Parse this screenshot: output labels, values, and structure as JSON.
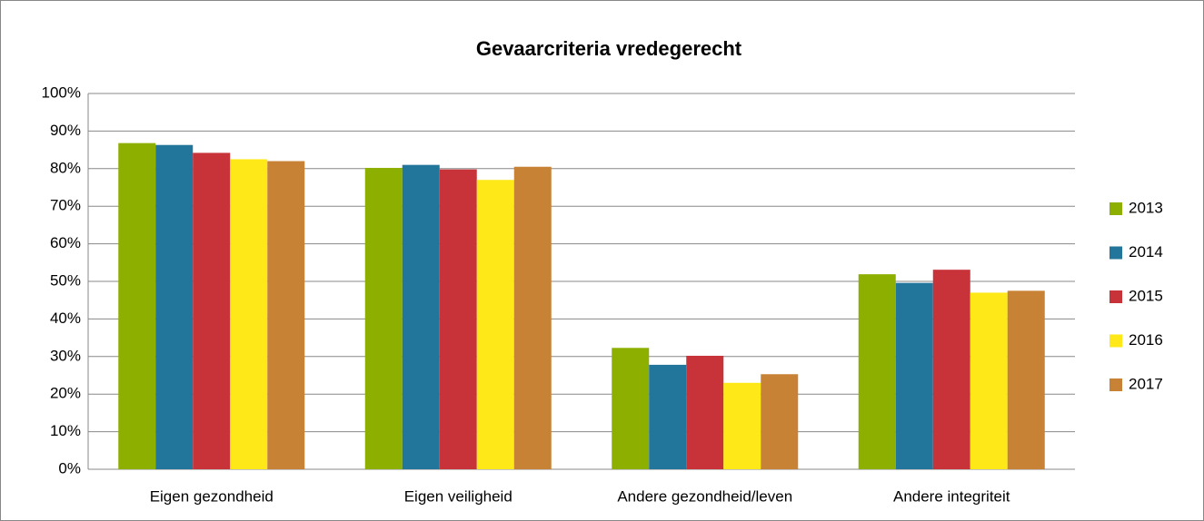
{
  "chart_data": {
    "type": "bar",
    "title": "Gevaarcriteria vredegerecht",
    "categories": [
      "Eigen gezondheid",
      "Eigen veiligheid",
      "Andere gezondheid/leven",
      "Andere integriteit"
    ],
    "series": [
      {
        "name": "2013",
        "color": "#8db000",
        "values": [
          86.8,
          80.2,
          32.3,
          51.9
        ]
      },
      {
        "name": "2014",
        "color": "#23769b",
        "values": [
          86.3,
          81.0,
          27.8,
          49.6
        ]
      },
      {
        "name": "2015",
        "color": "#c8333a",
        "values": [
          84.2,
          79.8,
          30.2,
          53.1
        ]
      },
      {
        "name": "2016",
        "color": "#ffe817",
        "values": [
          82.5,
          77.0,
          23.0,
          47.0
        ]
      },
      {
        "name": "2017",
        "color": "#c88235",
        "values": [
          82.0,
          80.5,
          25.3,
          47.5
        ]
      }
    ],
    "ylim": [
      0,
      100
    ],
    "yticks": [
      {
        "value": 0,
        "label": "0%"
      },
      {
        "value": 10,
        "label": "10%"
      },
      {
        "value": 20,
        "label": "20%"
      },
      {
        "value": 30,
        "label": "30%"
      },
      {
        "value": 40,
        "label": "40%"
      },
      {
        "value": 50,
        "label": "50%"
      },
      {
        "value": 60,
        "label": "60%"
      },
      {
        "value": 70,
        "label": "70%"
      },
      {
        "value": 80,
        "label": "80%"
      },
      {
        "value": 90,
        "label": "90%"
      },
      {
        "value": 100,
        "label": "100%"
      }
    ],
    "grid": true,
    "legend": "right"
  }
}
